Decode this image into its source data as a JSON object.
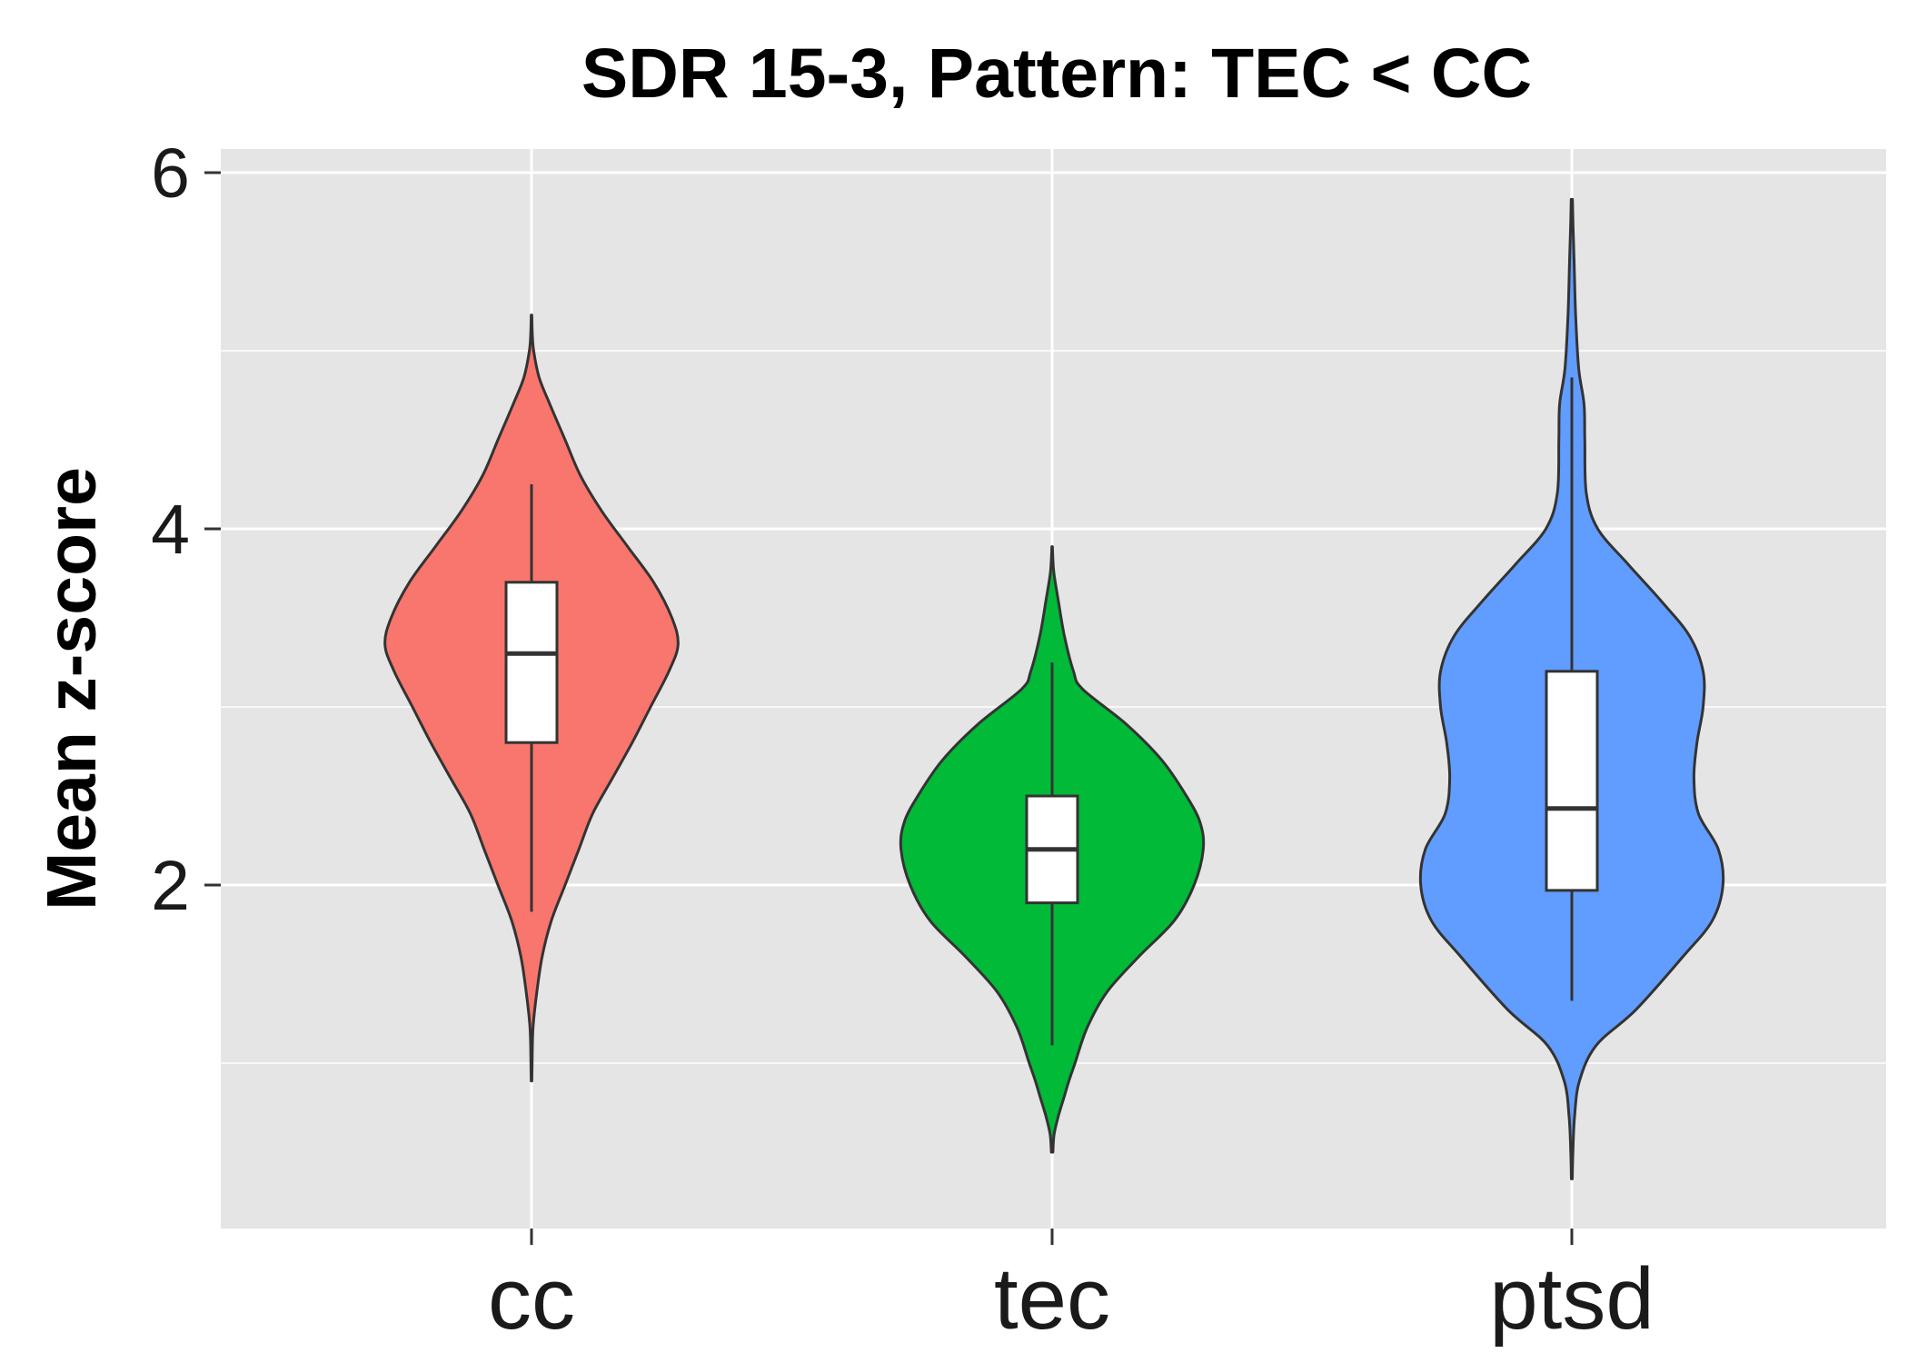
{
  "chart_data": {
    "type": "violin",
    "title": "SDR 15-3, Pattern: TEC < CC",
    "xlabel": "",
    "ylabel": "Mean z-score",
    "categories": [
      "cc",
      "tec",
      "ptsd"
    ],
    "yticks": [
      2,
      4,
      6
    ],
    "ylim": [
      0,
      6
    ],
    "grid": true,
    "legend": "none",
    "colors": {
      "panel": "#E5E5E5",
      "grid": "#FFFFFF",
      "outline": "#333333",
      "box": "#FFFFFF"
    },
    "series": [
      {
        "category": "cc",
        "color": "#F8766D",
        "range": [
          0.9,
          5.2
        ],
        "box": {
          "whisker_low": 1.85,
          "q1": 2.8,
          "median": 3.3,
          "q3": 3.7,
          "whisker_high": 4.25
        },
        "density": [
          [
            0.9,
            0.002
          ],
          [
            1.0,
            0.004
          ],
          [
            1.2,
            0.01
          ],
          [
            1.4,
            0.035
          ],
          [
            1.6,
            0.07
          ],
          [
            1.8,
            0.13
          ],
          [
            2.0,
            0.22
          ],
          [
            2.2,
            0.31
          ],
          [
            2.4,
            0.4
          ],
          [
            2.6,
            0.53
          ],
          [
            2.8,
            0.66
          ],
          [
            3.0,
            0.78
          ],
          [
            3.2,
            0.9
          ],
          [
            3.35,
            0.96
          ],
          [
            3.5,
            0.92
          ],
          [
            3.7,
            0.8
          ],
          [
            3.9,
            0.63
          ],
          [
            4.1,
            0.46
          ],
          [
            4.3,
            0.32
          ],
          [
            4.5,
            0.22
          ],
          [
            4.7,
            0.12
          ],
          [
            4.85,
            0.05
          ],
          [
            5.0,
            0.014
          ],
          [
            5.1,
            0.005
          ],
          [
            5.2,
            0.002
          ]
        ]
      },
      {
        "category": "tec",
        "color": "#00BA38",
        "range": [
          0.5,
          3.9
        ],
        "box": {
          "whisker_low": 1.1,
          "q1": 1.9,
          "median": 2.2,
          "q3": 2.5,
          "whisker_high": 3.25
        },
        "density": [
          [
            0.5,
            0.005
          ],
          [
            0.6,
            0.013
          ],
          [
            0.7,
            0.04
          ],
          [
            0.8,
            0.075
          ],
          [
            0.9,
            0.11
          ],
          [
            1.0,
            0.15
          ],
          [
            1.2,
            0.23
          ],
          [
            1.4,
            0.36
          ],
          [
            1.6,
            0.57
          ],
          [
            1.8,
            0.8
          ],
          [
            2.0,
            0.93
          ],
          [
            2.2,
            0.99
          ],
          [
            2.35,
            0.97
          ],
          [
            2.5,
            0.88
          ],
          [
            2.7,
            0.72
          ],
          [
            2.9,
            0.49
          ],
          [
            3.1,
            0.2
          ],
          [
            3.2,
            0.14
          ],
          [
            3.4,
            0.08
          ],
          [
            3.6,
            0.04
          ],
          [
            3.75,
            0.012
          ],
          [
            3.85,
            0.004
          ],
          [
            3.9,
            0.002
          ]
        ]
      },
      {
        "category": "ptsd",
        "color": "#619CFF",
        "range": [
          0.35,
          5.85
        ],
        "box": {
          "whisker_low": 1.35,
          "q1": 1.97,
          "median": 2.43,
          "q3": 3.2,
          "whisker_high": 4.85
        },
        "density": [
          [
            0.35,
            0.003
          ],
          [
            0.5,
            0.007
          ],
          [
            0.7,
            0.018
          ],
          [
            0.9,
            0.05
          ],
          [
            1.1,
            0.16
          ],
          [
            1.3,
            0.42
          ],
          [
            1.6,
            0.73
          ],
          [
            1.8,
            0.92
          ],
          [
            2.0,
            0.99
          ],
          [
            2.2,
            0.96
          ],
          [
            2.4,
            0.83
          ],
          [
            2.6,
            0.8
          ],
          [
            2.8,
            0.82
          ],
          [
            3.0,
            0.86
          ],
          [
            3.2,
            0.86
          ],
          [
            3.4,
            0.77
          ],
          [
            3.6,
            0.58
          ],
          [
            3.8,
            0.37
          ],
          [
            4.0,
            0.17
          ],
          [
            4.2,
            0.095
          ],
          [
            4.5,
            0.085
          ],
          [
            4.7,
            0.08
          ],
          [
            4.9,
            0.045
          ],
          [
            5.2,
            0.025
          ],
          [
            5.5,
            0.015
          ],
          [
            5.7,
            0.008
          ],
          [
            5.85,
            0.004
          ]
        ]
      }
    ]
  }
}
